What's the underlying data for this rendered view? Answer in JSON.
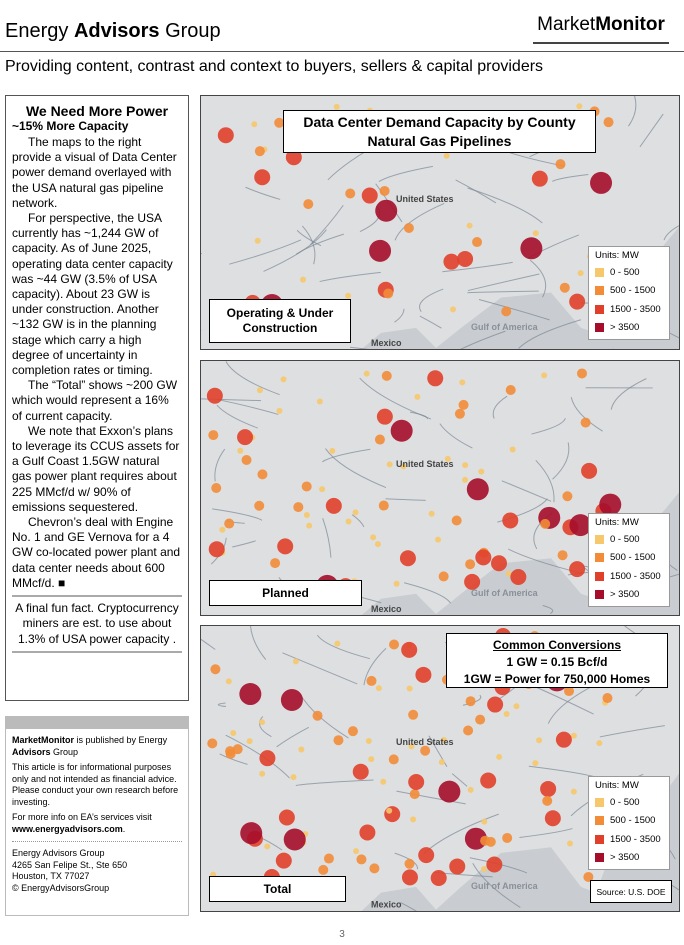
{
  "header": {
    "brand": [
      "Energy ",
      "Advisors",
      " Group"
    ],
    "logo": [
      "Market",
      "Monitor"
    ],
    "tagline": "Providing content, contrast and context to buyers, sellers & capital providers"
  },
  "sidebar": {
    "title": "We Need More Power",
    "subtitle": "~15% More Capacity",
    "paragraphs": [
      "The maps to the right provide a visual of Data Center power demand overlayed with the USA natural gas pipeline network.",
      "For perspective, the USA currently has ~1,244 GW of capacity. As of June 2025, operating data center capacity was ~44 GW (3.5% of USA capacity). About 23 GW is under construction. Another ~132 GW is in the planning stage which carry a high degree of uncertainty in completion rates or timing.",
      "The “Total” shows ~200 GW which would represent a 16% of current capacity.",
      "We note that Exxon’s plans to leverage its CCUS assets for a Gulf Coast 1.5GW natural gas power plant requires about 225 MMcf/d w/ 90% of emissions sequestered.",
      "Chevron’s deal with Engine No. 1 and GE Vernova for a 4 GW co-located power plant and data center needs about 600 MMcf/d. ■"
    ],
    "fun_fact": "A final fun fact. Cryptocurrency miners are est. to use about 1.3% of USA power capacity ."
  },
  "publisher": {
    "intro": [
      "MarketMonitor",
      " is published by Energy ",
      "Advisors",
      " Group"
    ],
    "disclaimer": "This article is for informational purposes only and not intended as financial advice. Please conduct your own research before investing.",
    "more_info": "For more info on EA’s services visit",
    "url": "www.energyadvisors.com",
    "url_end": ".",
    "address": [
      "Energy Advisors Group",
      "4265 San Felipe St.,  Ste 650",
      "Houston, TX 77027",
      "© EnergyAdvisorsGroup"
    ]
  },
  "maps": {
    "title": [
      "Data Center Demand Capacity by County",
      "Natural Gas Pipelines"
    ],
    "legend": {
      "units": "Units: MW",
      "items": [
        "0 - 500",
        "500 - 1500",
        "1500 - 3500",
        "> 3500"
      ],
      "colors": [
        "#f6c86b",
        "#f28c38",
        "#e0402a",
        "#a50d2a"
      ]
    },
    "panels": [
      {
        "label": "Operating & Under Construction"
      },
      {
        "label": "Planned"
      },
      {
        "label": "Total"
      }
    ],
    "place_labels": [
      "United States",
      "Gulf of America",
      "Mexico"
    ],
    "conversions": {
      "title": "Common Conversions",
      "lines": [
        "1 GW = 0.15 Bcf/d",
        "1GW = Power for 750,000 Homes"
      ]
    },
    "source": "Source: U.S. DOE"
  },
  "page_number": "3"
}
